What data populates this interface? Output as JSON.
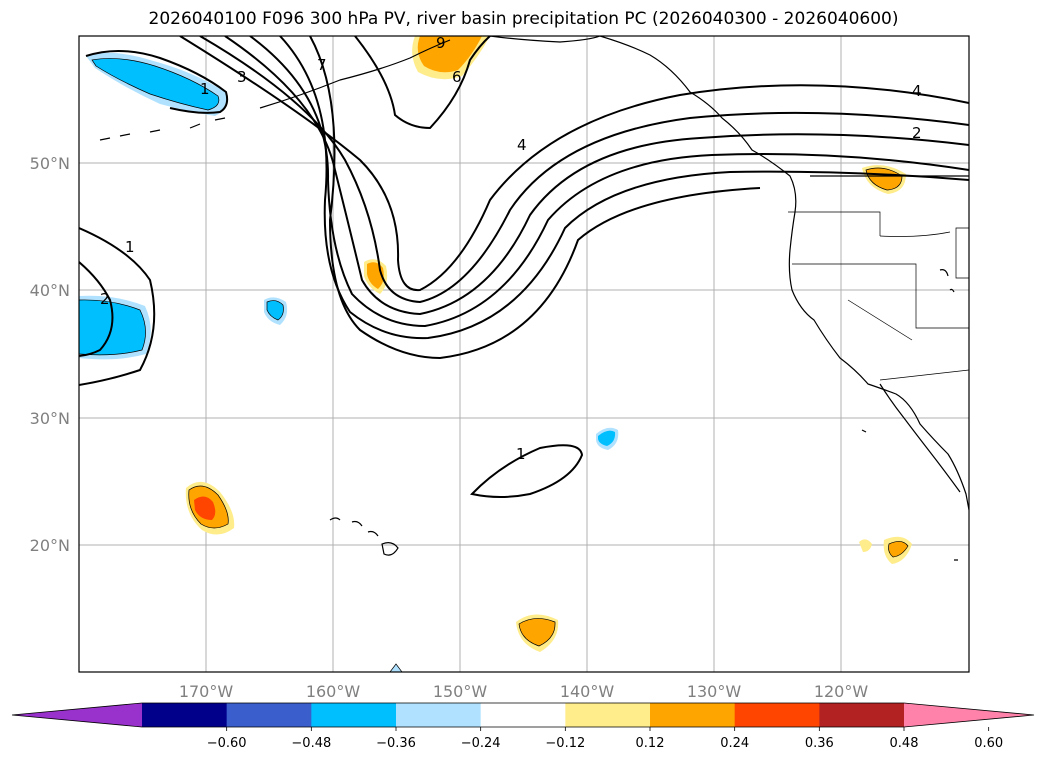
{
  "title": "2026040100 F096 300 hPa PV, river basin precipitation PC (2026040300 - 2026040600)",
  "axes": {
    "lon_ticks": [
      "170°W",
      "160°W",
      "150°W",
      "140°W",
      "130°W",
      "120°W"
    ],
    "lat_ticks": [
      "50°N",
      "40°N",
      "30°N",
      "20°N"
    ]
  },
  "pv_contour_labels": [
    "1",
    "3",
    "7",
    "9",
    "6",
    "4",
    "4",
    "2",
    "1",
    "2",
    "1"
  ],
  "colorbar": {
    "colors": [
      "#9932cc",
      "#00008b",
      "#3a5fcd",
      "#00bfff",
      "#b0e2ff",
      "#ffffff",
      "#ffec8b",
      "#ffa500",
      "#ff4500",
      "#b22222",
      "#ff82ab"
    ],
    "ticks": [
      "−0.60",
      "−0.48",
      "−0.36",
      "−0.24",
      "−0.12",
      "0.12",
      "0.24",
      "0.36",
      "0.48",
      "0.60"
    ],
    "extend": "both"
  },
  "colors": {
    "grid": "#b0b0b0",
    "coast": "#000000",
    "tick_label": "#808080"
  }
}
